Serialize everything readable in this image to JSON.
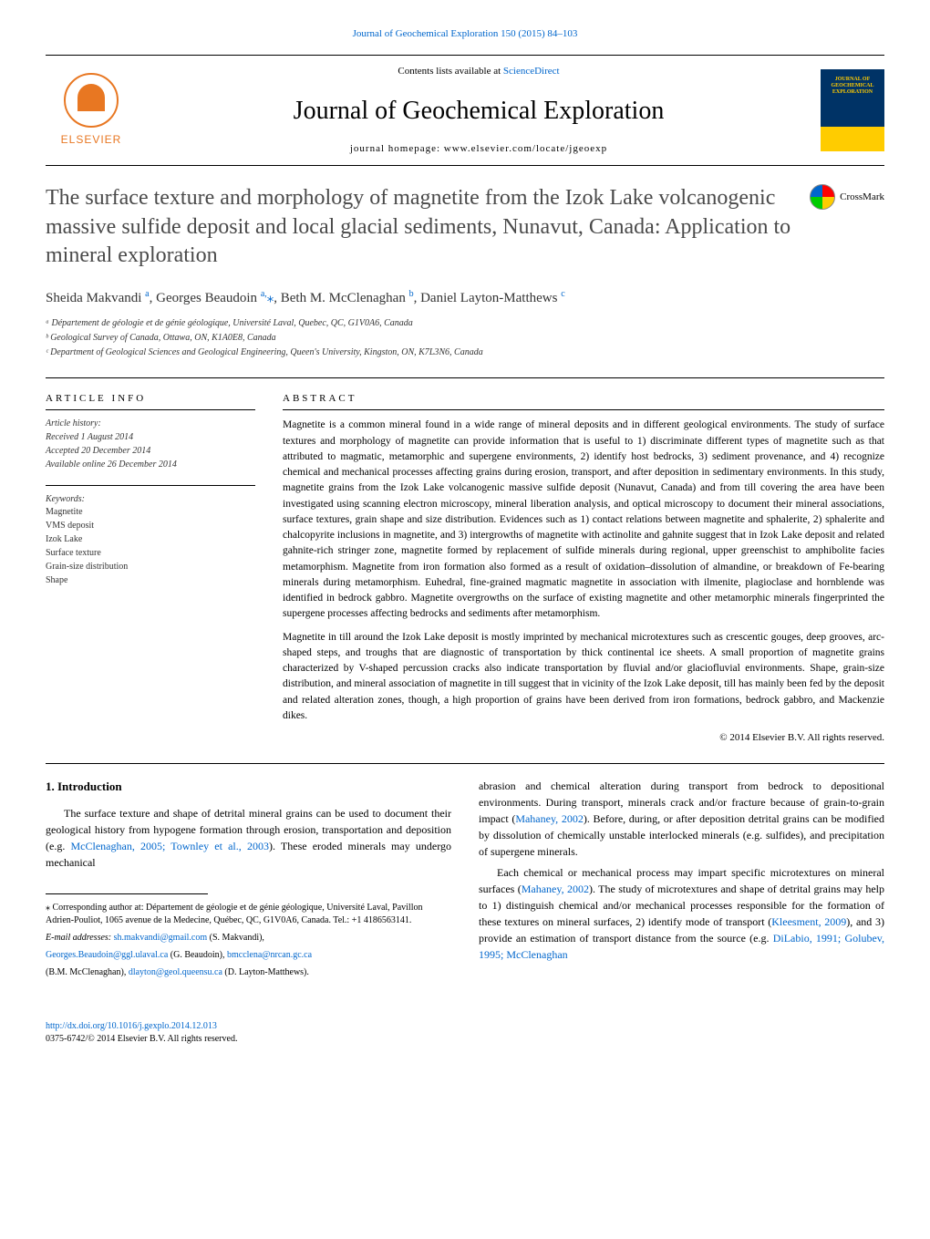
{
  "journal_ref": "Journal of Geochemical Exploration 150 (2015) 84–103",
  "header": {
    "contents_prefix": "Contents lists available at ",
    "contents_link": "ScienceDirect",
    "journal_title": "Journal of Geochemical Exploration",
    "homepage_prefix": "journal homepage: ",
    "homepage": "www.elsevier.com/locate/jgeoexp",
    "elsevier": "ELSEVIER",
    "cover_line1": "JOURNAL OF",
    "cover_line2": "GEOCHEMICAL",
    "cover_line3": "EXPLORATION"
  },
  "crossmark": "CrossMark",
  "title": "The surface texture and morphology of magnetite from the Izok Lake volcanogenic massive sulfide deposit and local glacial sediments, Nunavut, Canada: Application to mineral exploration",
  "authors": {
    "a1_name": "Sheida Makvandi ",
    "a1_sup": "a",
    "a2_name": ", Georges Beaudoin ",
    "a2_sup": "a,",
    "a2_star": "⁎",
    "a3_name": ", Beth M. McClenaghan ",
    "a3_sup": "b",
    "a4_name": ", Daniel Layton-Matthews ",
    "a4_sup": "c"
  },
  "affiliations": {
    "a": "ᵃ Département de géologie et de génie géologique, Université Laval, Quebec, QC, G1V0A6, Canada",
    "b": "ᵇ Geological Survey of Canada, Ottawa, ON, K1A0E8, Canada",
    "c": "ᶜ Department of Geological Sciences and Geological Engineering, Queen's University, Kingston, ON, K7L3N6, Canada"
  },
  "info": {
    "header": "article info",
    "history_label": "Article history:",
    "received": "Received 1 August 2014",
    "accepted": "Accepted 20 December 2014",
    "online": "Available online 26 December 2014",
    "keywords_label": "Keywords:",
    "kw1": "Magnetite",
    "kw2": "VMS deposit",
    "kw3": "Izok Lake",
    "kw4": "Surface texture",
    "kw5": "Grain-size distribution",
    "kw6": "Shape"
  },
  "abstract": {
    "header": "abstract",
    "p1": "Magnetite is a common mineral found in a wide range of mineral deposits and in different geological environments. The study of surface textures and morphology of magnetite can provide information that is useful to 1) discriminate different types of magnetite such as that attributed to magmatic, metamorphic and supergene environments, 2) identify host bedrocks, 3) sediment provenance, and 4) recognize chemical and mechanical processes affecting grains during erosion, transport, and after deposition in sedimentary environments. In this study, magnetite grains from the Izok Lake volcanogenic massive sulfide deposit (Nunavut, Canada) and from till covering the area have been investigated using scanning electron microscopy, mineral liberation analysis, and optical microscopy to document their mineral associations, surface textures, grain shape and size distribution. Evidences such as 1) contact relations between magnetite and sphalerite, 2) sphalerite and chalcopyrite inclusions in magnetite, and 3) intergrowths of magnetite with actinolite and gahnite suggest that in Izok Lake deposit and related gahnite-rich stringer zone, magnetite formed by replacement of sulfide minerals during regional, upper greenschist to amphibolite facies metamorphism. Magnetite from iron formation also formed as a result of oxidation–dissolution of almandine, or breakdown of Fe-bearing minerals during metamorphism. Euhedral, fine-grained magmatic magnetite in association with ilmenite, plagioclase and hornblende was identified in bedrock gabbro. Magnetite overgrowths on the surface of existing magnetite and other metamorphic minerals fingerprinted the supergene processes affecting bedrocks and sediments after metamorphism.",
    "p2": "Magnetite in till around the Izok Lake deposit is mostly imprinted by mechanical microtextures such as crescentic gouges, deep grooves, arc-shaped steps, and troughs that are diagnostic of transportation by thick continental ice sheets. A small proportion of magnetite grains characterized by V-shaped percussion cracks also indicate transportation by fluvial and/or glaciofluvial environments. Shape, grain-size distribution, and mineral association of magnetite in till suggest that in vicinity of the Izok Lake deposit, till has mainly been fed by the deposit and related alteration zones, though, a high proportion of grains have been derived from iron formations, bedrock gabbro, and Mackenzie dikes.",
    "copyright": "© 2014 Elsevier B.V. All rights reserved."
  },
  "body": {
    "section1_title": "1. Introduction",
    "left_p1a": "The surface texture and shape of detrital mineral grains can be used to document their geological history from hypogene formation through erosion, transportation and deposition (e.g. ",
    "left_p1_link": "McClenaghan, 2005; Townley et al., 2003",
    "left_p1b": "). These eroded minerals may undergo mechanical",
    "right_p1a": "abrasion and chemical alteration during transport from bedrock to depositional environments. During transport, minerals crack and/or fracture because of grain-to-grain impact (",
    "right_p1_link1": "Mahaney, 2002",
    "right_p1b": "). Before, during, or after deposition detrital grains can be modified by dissolution of chemically unstable interlocked minerals (e.g. sulfides), and precipitation of supergene minerals.",
    "right_p2a": "Each chemical or mechanical process may impart specific microtextures on mineral surfaces (",
    "right_p2_link1": "Mahaney, 2002",
    "right_p2b": "). The study of microtextures and shape of detrital grains may help to 1) distinguish chemical and/or mechanical processes responsible for the formation of these textures on mineral surfaces, 2) identify mode of transport (",
    "right_p2_link2": "Kleesment, 2009",
    "right_p2c": "), and 3) provide an estimation of transport distance from the source (e.g. ",
    "right_p2_link3": "DiLabio, 1991; Golubev, 1995; McClenaghan"
  },
  "footnote": {
    "corr_prefix": "⁎ Corresponding author at: Département de géologie et de génie géologique, Université Laval, Pavillon Adrien-Pouliot, 1065 avenue de la Medecine, Québec, QC, G1V0A6, Canada. Tel.: +1 4186563141.",
    "email_label": "E-mail addresses: ",
    "email1": "sh.makvandi@gmail.com",
    "email1_who": " (S. Makvandi),",
    "email2": "Georges.Beaudoin@ggl.ulaval.ca",
    "email2_who": " (G. Beaudoin), ",
    "email3": "bmcclena@nrcan.gc.ca",
    "email3_who": "(B.M. McClenaghan), ",
    "email4": "dlayton@geol.queensu.ca",
    "email4_who": " (D. Layton-Matthews)."
  },
  "footer": {
    "doi": "http://dx.doi.org/10.1016/j.gexplo.2014.12.013",
    "issn": "0375-6742/© 2014 Elsevier B.V. All rights reserved."
  },
  "colors": {
    "link": "#0066cc",
    "elsevier_orange": "#e87722",
    "text": "#000000",
    "title_gray": "#4a4a4a"
  }
}
